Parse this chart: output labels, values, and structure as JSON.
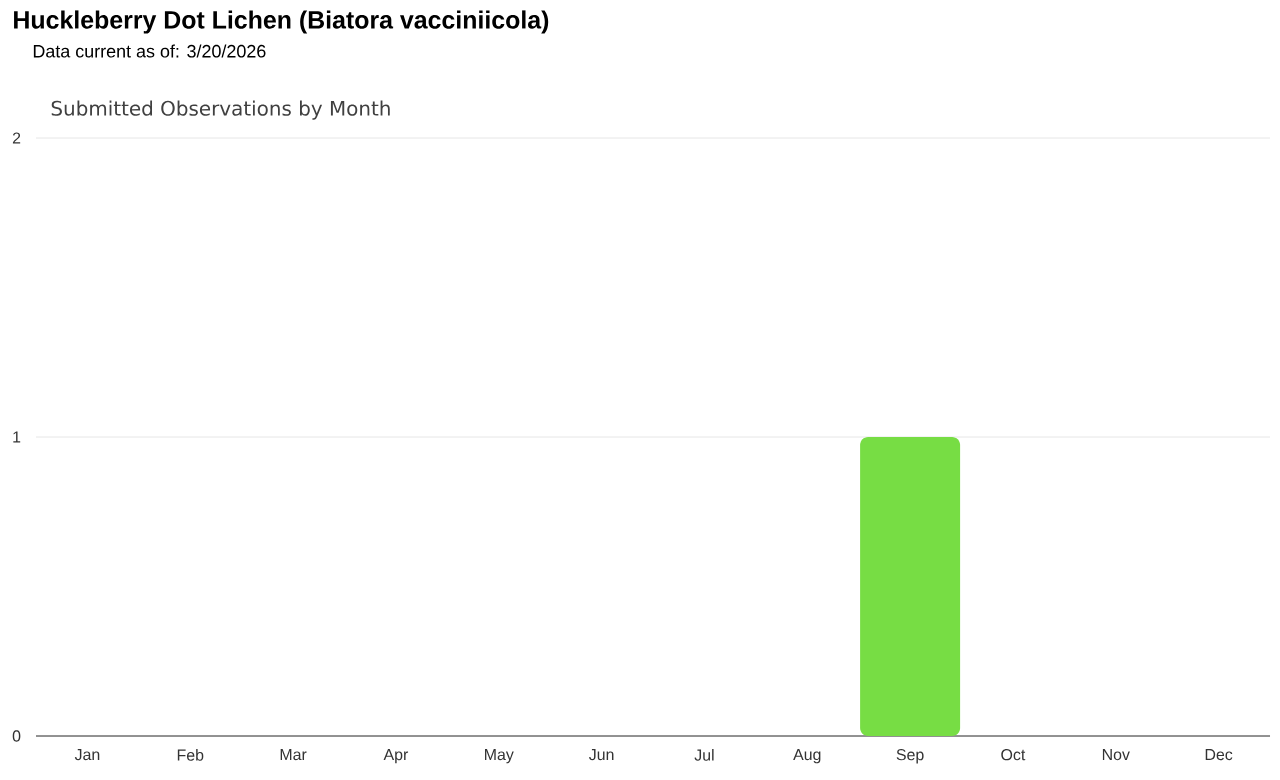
{
  "chart_data": {
    "type": "bar",
    "title": "Huckleberry Dot Lichen   (Biatora vacciniicola)",
    "subtitle": "Data current as of: 3/20/2026",
    "annotations": [
      "Submitted Observations by Month"
    ],
    "categories": [
      "Jan",
      "Feb",
      "Mar",
      "Apr",
      "May",
      "Jun",
      "Jul",
      "Aug",
      "Sep",
      "Oct",
      "Nov",
      "Dec"
    ],
    "values": [
      0,
      0,
      0,
      0,
      0,
      0,
      0,
      0,
      1,
      0,
      0,
      0
    ],
    "color": "#77dd44",
    "ylim": [
      0,
      2
    ],
    "yticks": [
      0,
      1,
      2
    ],
    "grid": "y"
  }
}
